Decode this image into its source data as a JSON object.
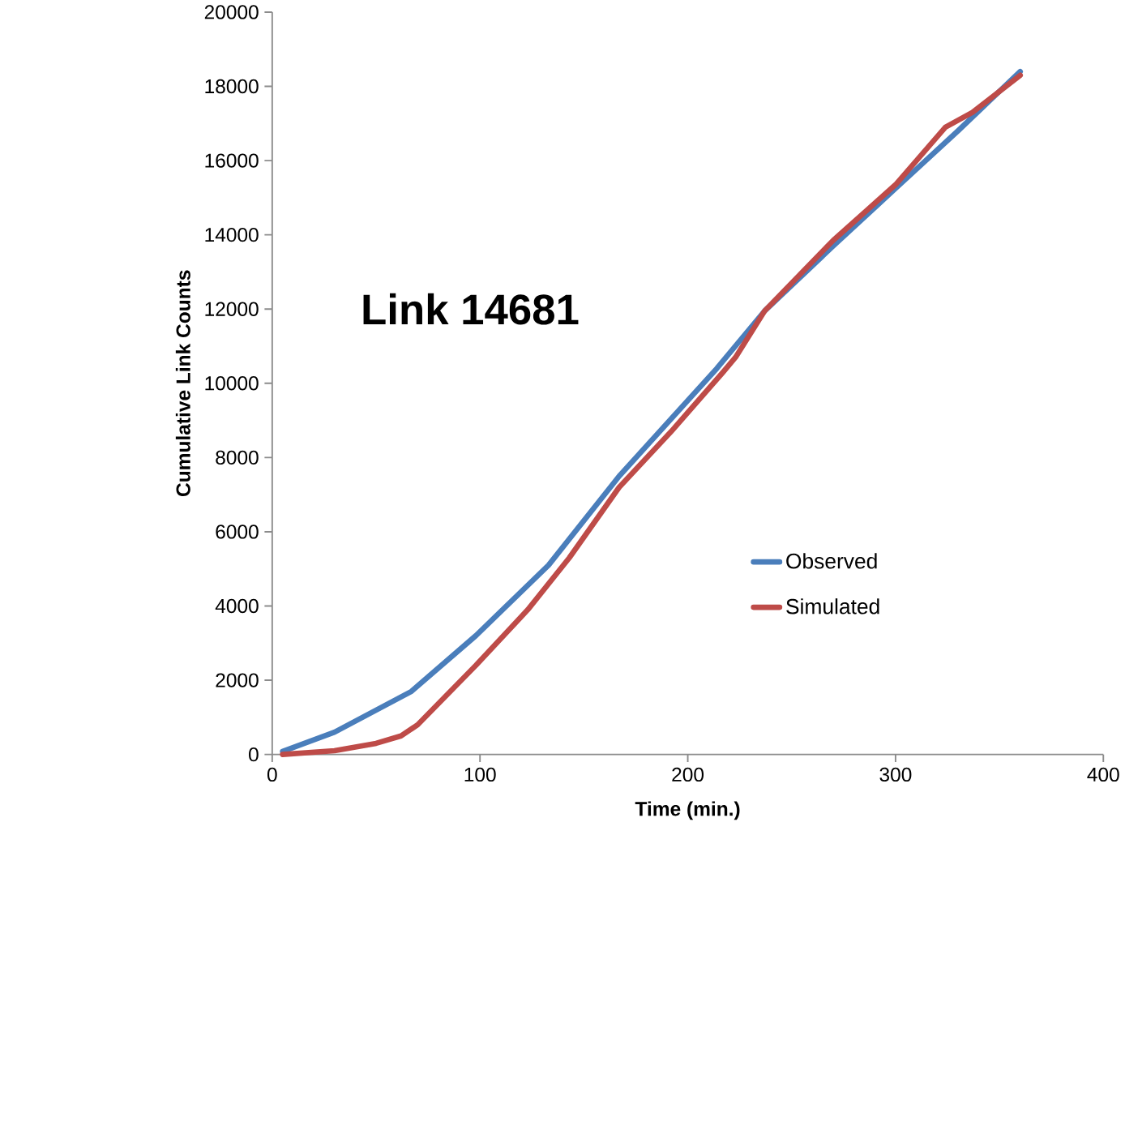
{
  "chart_data": {
    "type": "line",
    "xlabel": "Time (min.)",
    "ylabel": "Cumulative Link Counts",
    "annotations": [
      "Link 14681"
    ],
    "xlim": [
      0,
      400
    ],
    "xticks": [
      0,
      100,
      200,
      300,
      400
    ],
    "ylim": [
      0,
      20000
    ],
    "yticks": [
      0,
      2000,
      4000,
      6000,
      8000,
      10000,
      12000,
      14000,
      16000,
      18000,
      20000
    ],
    "legend": "bottom right",
    "grid": false,
    "marker": "none",
    "line_style": "solid",
    "series": [
      {
        "name": "Observed",
        "color": "#4a7ebb",
        "x": [
          5,
          30,
          67,
          98,
          133,
          167,
          214,
          237,
          270,
          300,
          330,
          360
        ],
        "values": [
          80,
          600,
          1700,
          3200,
          5100,
          7500,
          10400,
          11950,
          13700,
          15250,
          16800,
          18400
        ]
      },
      {
        "name": "Simulated",
        "color": "#be4b48",
        "x": [
          5,
          30,
          50,
          62,
          70,
          98,
          123,
          143,
          167,
          192,
          217,
          223,
          237,
          270,
          300,
          324,
          337,
          360
        ],
        "values": [
          0,
          100,
          300,
          500,
          800,
          2400,
          3900,
          5300,
          7200,
          8700,
          10300,
          10700,
          11950,
          13850,
          15350,
          16900,
          17300,
          18300
        ]
      }
    ]
  }
}
